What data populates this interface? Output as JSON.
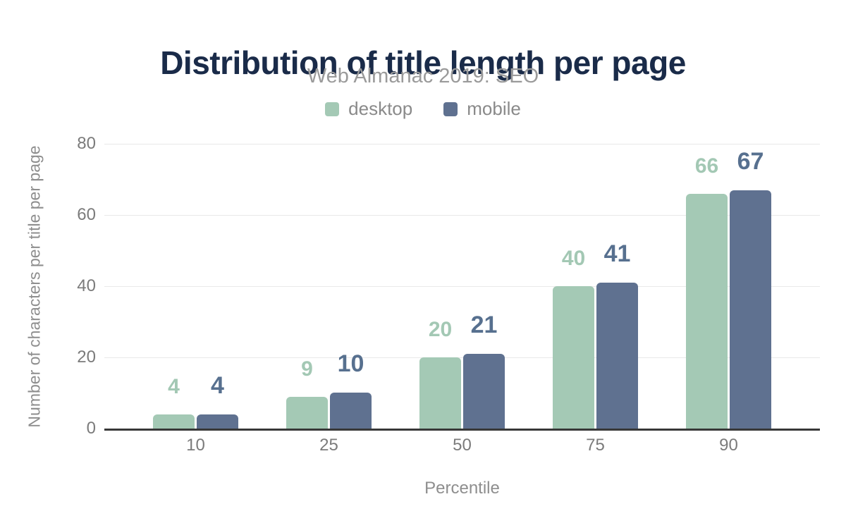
{
  "title": "Distribution of title length per page",
  "subtitle": "Web Almanac 2019: SEO",
  "legend": {
    "items": [
      {
        "label": "desktop",
        "color": "#a4c9b5"
      },
      {
        "label": "mobile",
        "color": "#5f7190"
      }
    ]
  },
  "axes": {
    "x_title": "Percentile",
    "y_title": "Number of characters per title per page",
    "y_ticks": [
      0,
      20,
      40,
      60,
      80
    ],
    "x_ticks": [
      "10",
      "25",
      "50",
      "75",
      "90"
    ]
  },
  "colors": {
    "title": "#1a2b49",
    "desktop": "#a4c9b5",
    "mobile": "#5f7190"
  },
  "chart_data": {
    "type": "bar",
    "title": "Distribution of title length per page",
    "subtitle": "Web Almanac 2019: SEO",
    "categories": [
      "10",
      "25",
      "50",
      "75",
      "90"
    ],
    "series": [
      {
        "name": "desktop",
        "color": "#a4c9b5",
        "label_color": "#a3c8b4",
        "values": [
          4,
          9,
          20,
          40,
          66
        ]
      },
      {
        "name": "mobile",
        "color": "#5f7190",
        "label_color": "#57708f",
        "values": [
          4,
          10,
          21,
          41,
          67
        ]
      }
    ],
    "xlabel": "Percentile",
    "ylabel": "Number of characters per title per page",
    "ylim": [
      0,
      80
    ],
    "grid": true,
    "legend_position": "top",
    "value_labels": true
  }
}
